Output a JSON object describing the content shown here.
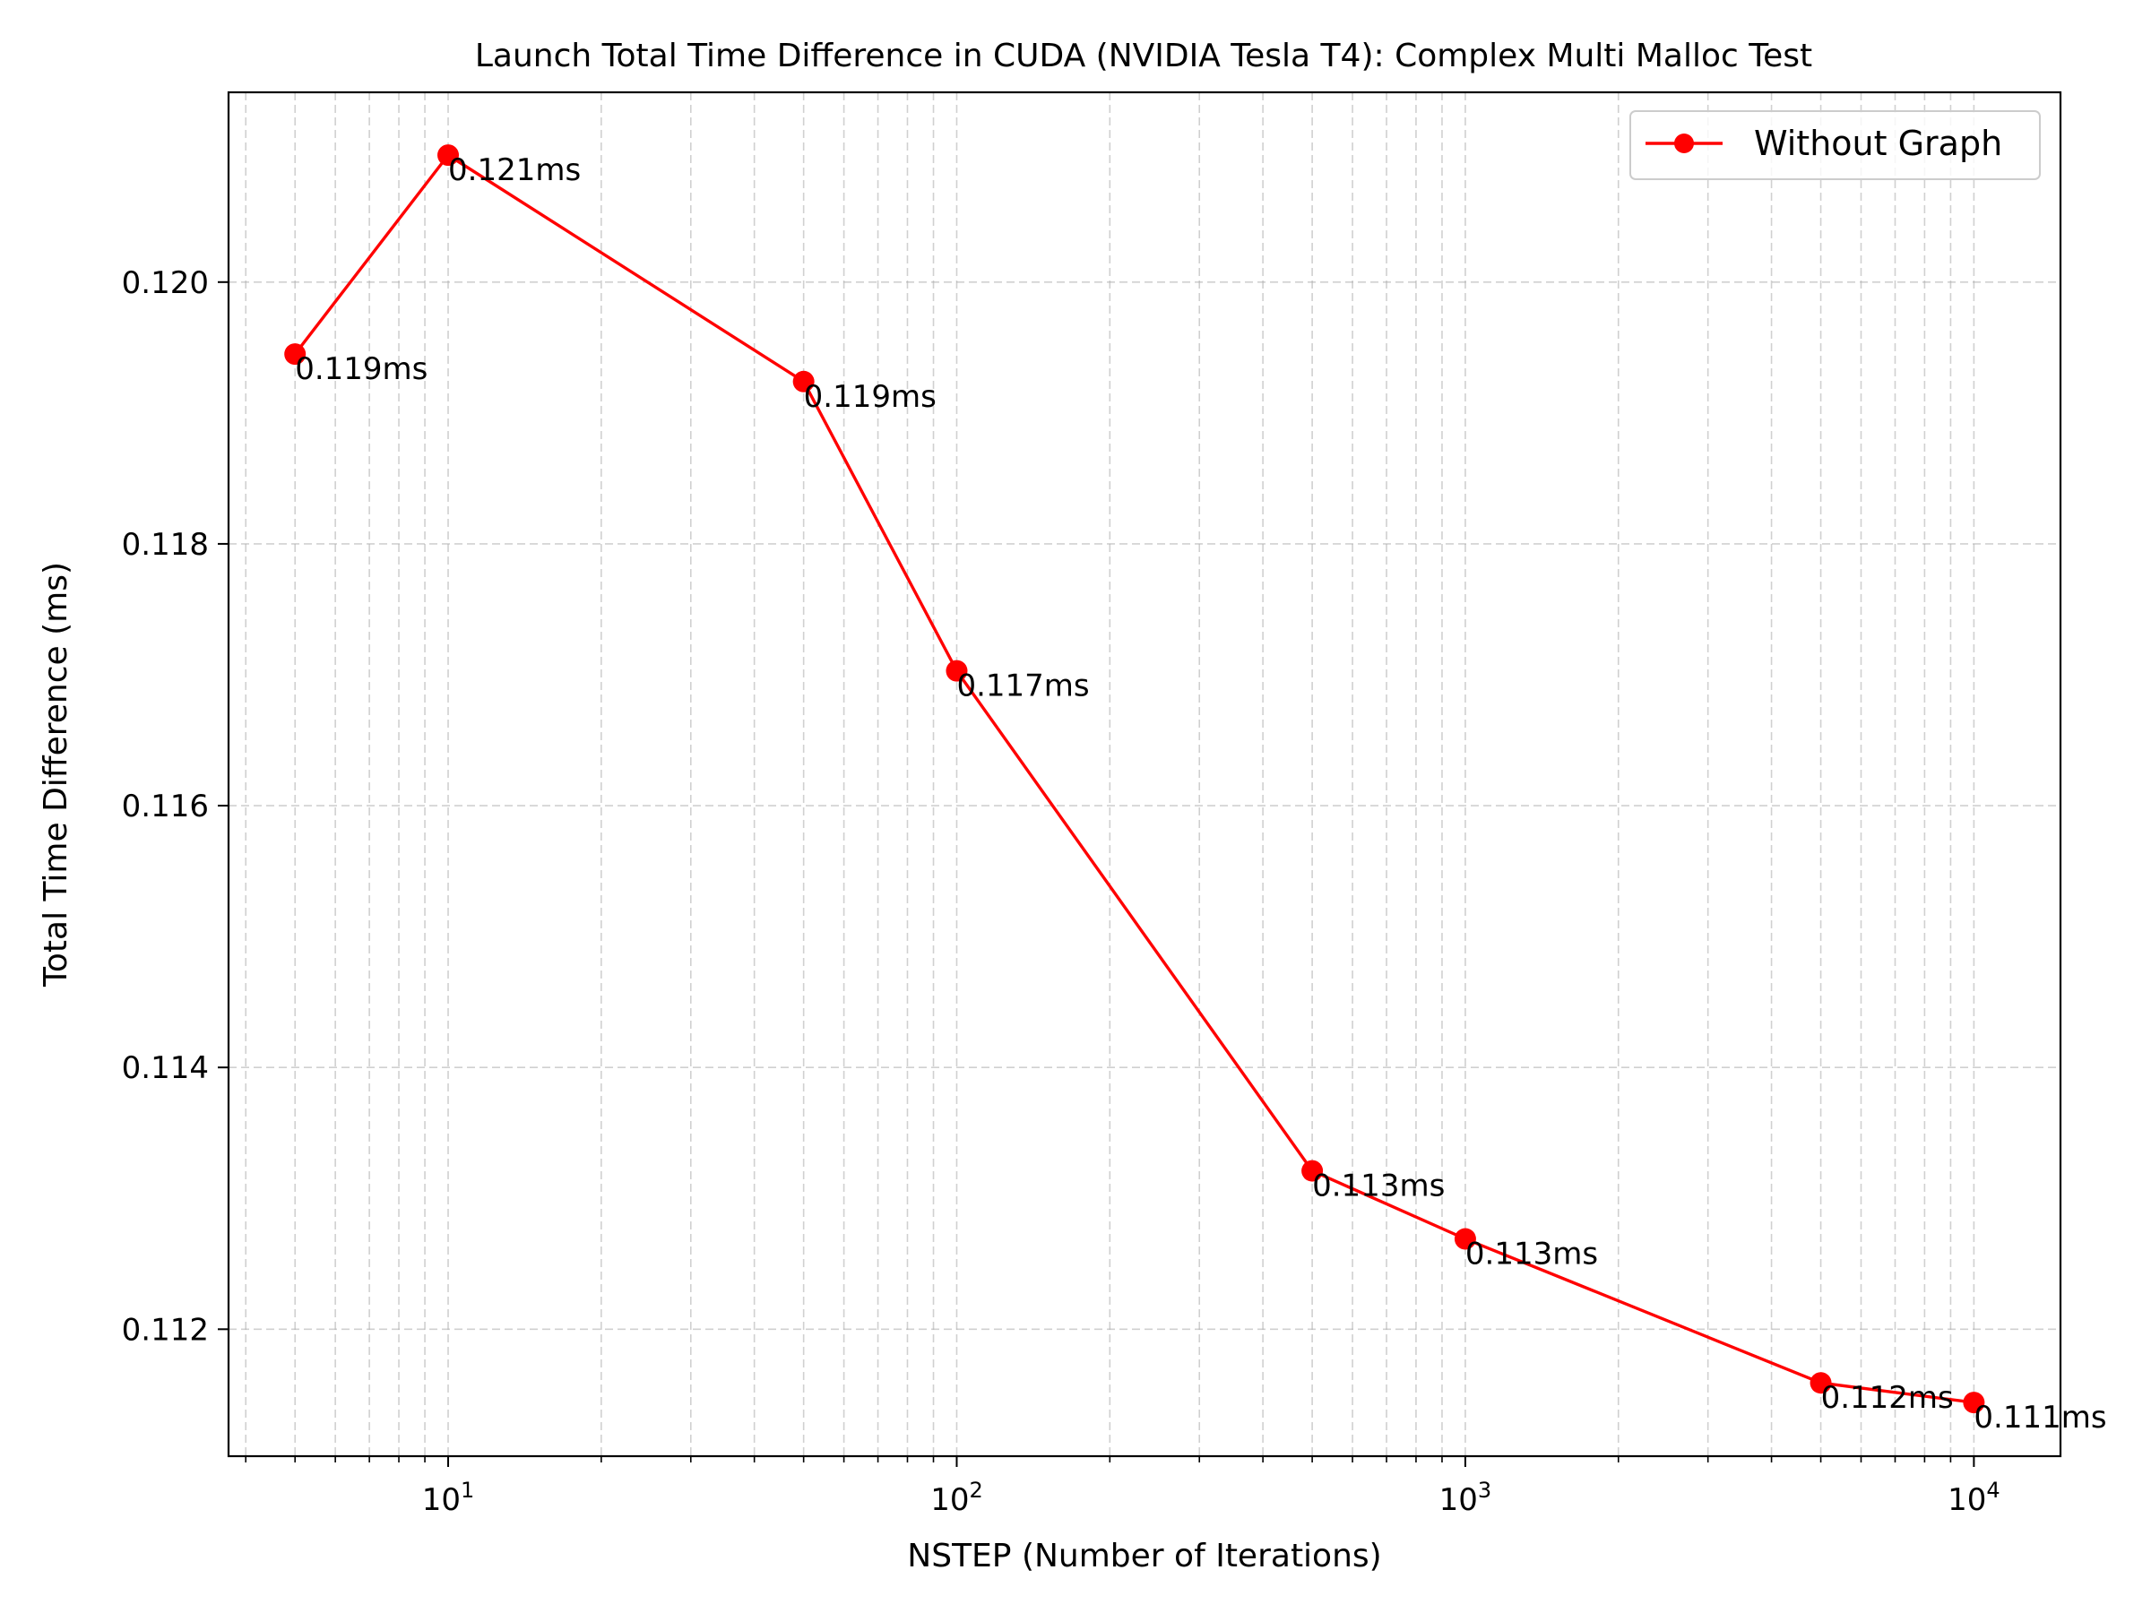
{
  "chart_data": {
    "type": "line",
    "title": "Launch Total Time Difference in CUDA (NVIDIA Tesla T4): Complex Multi Malloc Test",
    "xlabel": "NSTEP (Number of Iterations)",
    "ylabel": "Total Time Difference (ms)",
    "x_scale": "log",
    "xlim": [
      3.7,
      14800
    ],
    "ylim": [
      0.11103,
      0.12145
    ],
    "x_ticks": [
      {
        "value": 10,
        "base": "10",
        "exp": "1"
      },
      {
        "value": 100,
        "base": "10",
        "exp": "2"
      },
      {
        "value": 1000,
        "base": "10",
        "exp": "3"
      },
      {
        "value": 10000,
        "base": "10",
        "exp": "4"
      }
    ],
    "y_ticks": [
      {
        "value": 0.112,
        "label": "0.112"
      },
      {
        "value": 0.114,
        "label": "0.114"
      },
      {
        "value": 0.116,
        "label": "0.116"
      },
      {
        "value": 0.118,
        "label": "0.118"
      },
      {
        "value": 0.12,
        "label": "0.120"
      }
    ],
    "grid": true,
    "legend_position": "top-right",
    "series": [
      {
        "name": "Without Graph",
        "color": "#ff0000",
        "x": [
          5,
          10,
          50,
          100,
          500,
          1000,
          5000,
          10000
        ],
        "y": [
          0.11945,
          0.12097,
          0.11924,
          0.11703,
          0.11321,
          0.11269,
          0.11159,
          0.11144
        ],
        "labels": [
          "0.119ms",
          "0.121ms",
          "0.119ms",
          "0.117ms",
          "0.113ms",
          "0.113ms",
          "0.112ms",
          "0.111ms"
        ]
      }
    ]
  }
}
